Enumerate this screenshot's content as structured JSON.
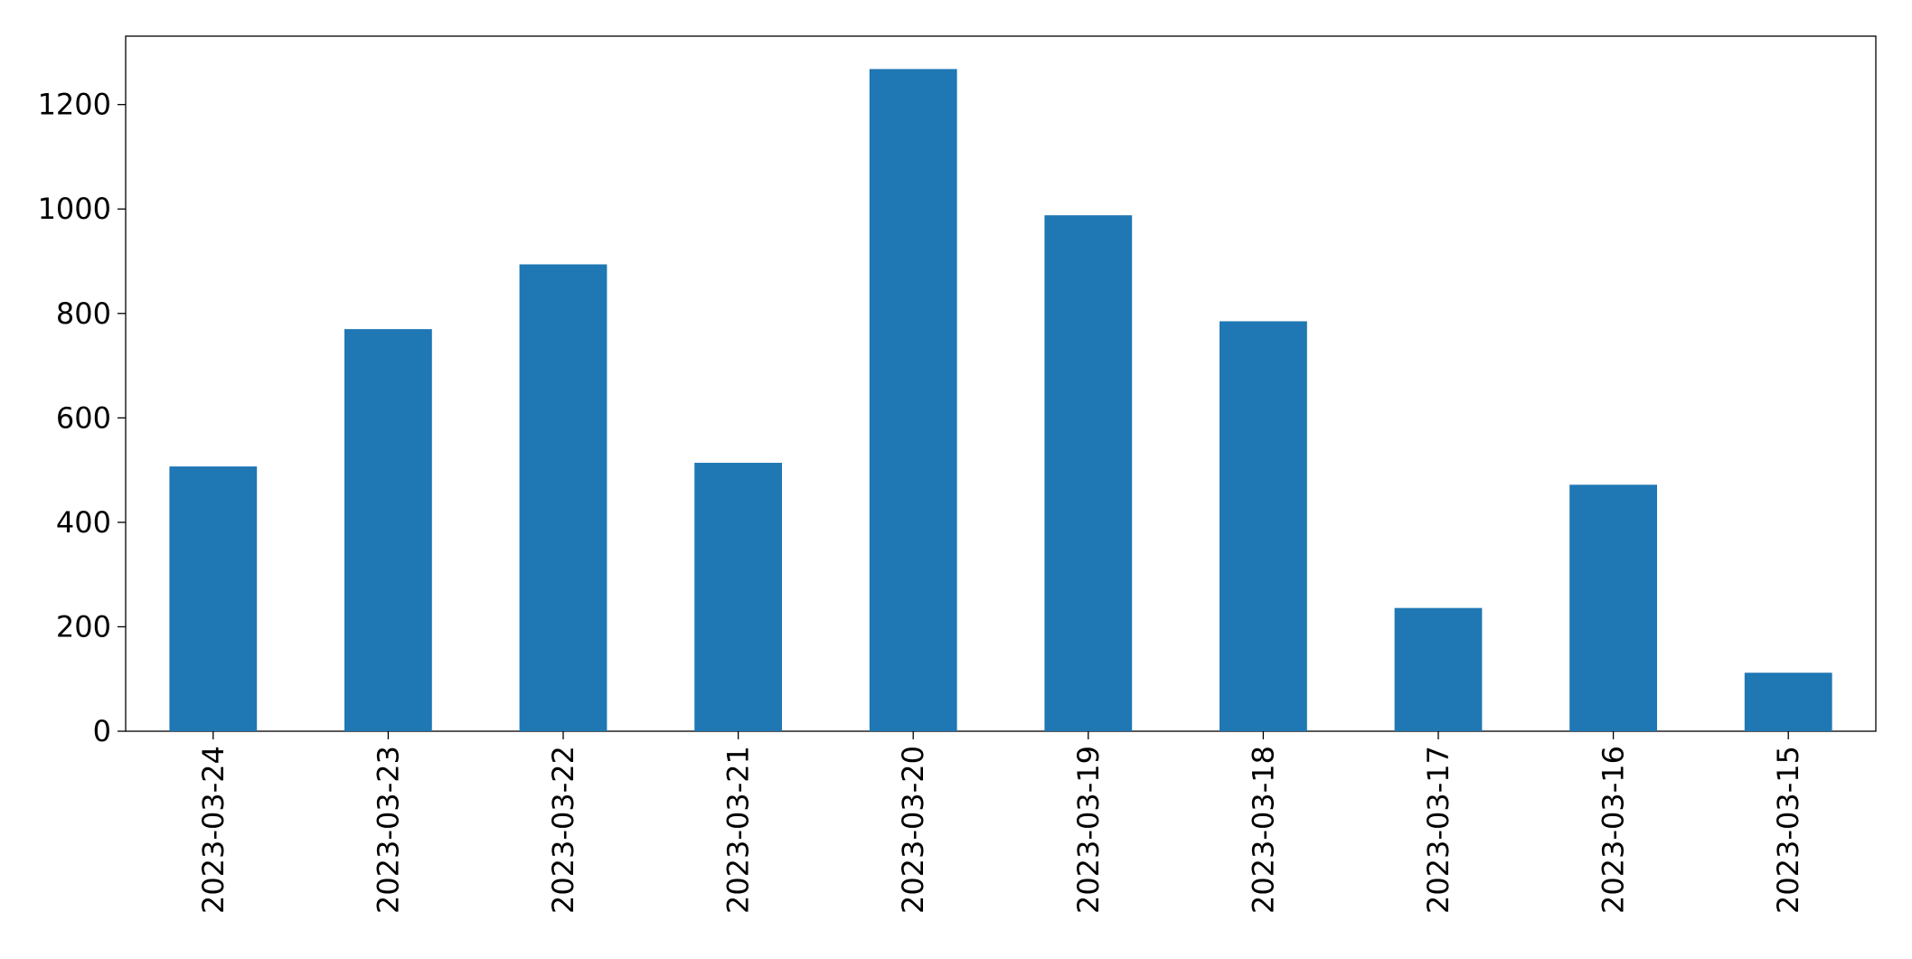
{
  "chart_data": {
    "type": "bar",
    "categories": [
      "2023-03-24",
      "2023-03-23",
      "2023-03-22",
      "2023-03-21",
      "2023-03-20",
      "2023-03-19",
      "2023-03-18",
      "2023-03-17",
      "2023-03-16",
      "2023-03-15"
    ],
    "values": [
      507,
      770,
      894,
      514,
      1268,
      988,
      785,
      236,
      472,
      112
    ],
    "color": "#1f77b4",
    "ylim": [
      0,
      1331
    ],
    "yticks": [
      0,
      200,
      400,
      600,
      800,
      1000,
      1200
    ],
    "grid": false
  }
}
